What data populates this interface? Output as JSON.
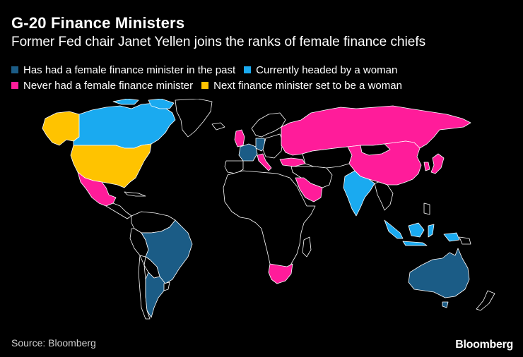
{
  "header": {
    "title": "G-20 Finance Ministers",
    "subtitle": "Former Fed chair Janet Yellen joins the ranks of female finance chiefs"
  },
  "legend": {
    "past": {
      "label": "Has had a female finance minister in the past",
      "color": "#1b5c86"
    },
    "current": {
      "label": "Currently headed by a woman",
      "color": "#1aaaf0"
    },
    "never": {
      "label": "Never had a female finance minister",
      "color": "#ff1c9a"
    },
    "next": {
      "label": "Next finance minister set to be a woman",
      "color": "#ffc300"
    }
  },
  "footer": {
    "source": "Source: Bloomberg",
    "brand": "Bloomberg"
  }
}
